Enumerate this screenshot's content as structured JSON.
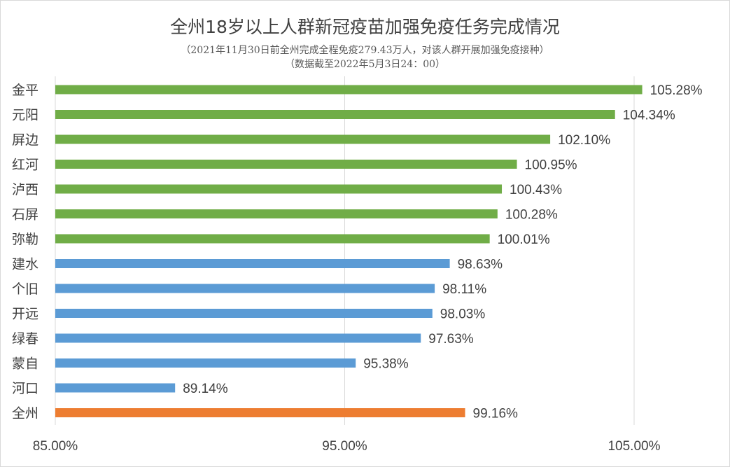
{
  "chart_data": {
    "type": "bar",
    "orientation": "horizontal",
    "title": "全州18岁以上人群新冠疫苗加强免疫任务完成情况",
    "subtitle_lines": [
      "（2021年11月30日前全州完成全程免疫279.43万人，对该人群开展加强免疫接种）",
      "（数据截至2022年5月3日24：00）"
    ],
    "categories": [
      "金平",
      "元阳",
      "屏边",
      "红河",
      "泸西",
      "石屏",
      "弥勒",
      "建水",
      "个旧",
      "开远",
      "绿春",
      "蒙自",
      "河口",
      "全州"
    ],
    "values": [
      105.28,
      104.34,
      102.1,
      100.95,
      100.43,
      100.28,
      100.01,
      98.63,
      98.11,
      98.03,
      97.63,
      95.38,
      89.14,
      99.16
    ],
    "value_labels": [
      "105.28%",
      "104.34%",
      "102.10%",
      "100.95%",
      "100.43%",
      "100.28%",
      "100.01%",
      "98.63%",
      "98.11%",
      "98.03%",
      "97.63%",
      "95.38%",
      "89.14%",
      "99.16%"
    ],
    "bar_colors": [
      "#70ad47",
      "#70ad47",
      "#70ad47",
      "#70ad47",
      "#70ad47",
      "#70ad47",
      "#70ad47",
      "#5b9bd5",
      "#5b9bd5",
      "#5b9bd5",
      "#5b9bd5",
      "#5b9bd5",
      "#5b9bd5",
      "#ed7d31"
    ],
    "xlim": [
      85,
      105
    ],
    "x_ticks": [
      85,
      95,
      105
    ],
    "x_tick_labels": [
      "85.00%",
      "95.00%",
      "105.00%"
    ],
    "grid": "vertical",
    "legend": "none"
  }
}
